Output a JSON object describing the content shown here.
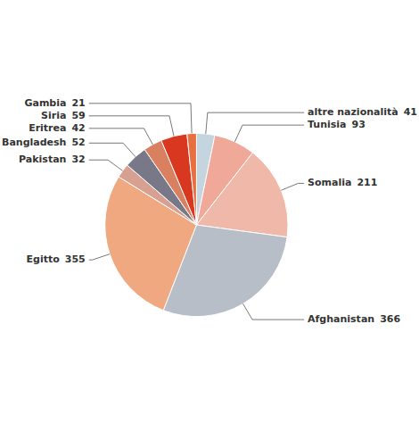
{
  "chart_data": {
    "type": "pie",
    "categories": [
      "altre nazionalità",
      "Tunisia",
      "Somalia",
      "Afghanistan",
      "Egitto",
      "Pakistan",
      "Bangladesh",
      "Eritrea",
      "Siria",
      "Gambia"
    ],
    "values": [
      41,
      93,
      211,
      366,
      355,
      32,
      52,
      42,
      59,
      21
    ],
    "colors": [
      "#c5d5e0",
      "#f0a898",
      "#f0b8a8",
      "#b8bec8",
      "#f0a880",
      "#d8a090",
      "#787888",
      "#d88060",
      "#d83820",
      "#e87040"
    ],
    "data_labels": true
  }
}
